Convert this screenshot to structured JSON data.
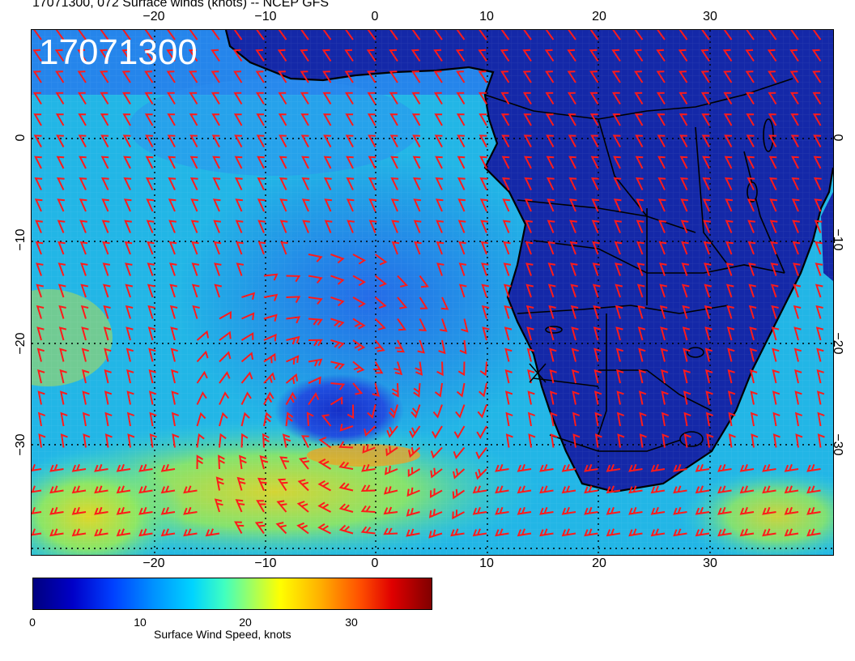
{
  "title": "17071300, 072 Surface winds (knots) -- NCEP GFS",
  "stamp": "17071300",
  "axes": {
    "top_ticks": [
      "−20",
      "−10",
      "0",
      "10",
      "20",
      "30"
    ],
    "bottom_ticks": [
      "−20",
      "−10",
      "0",
      "10",
      "20",
      "30"
    ],
    "left_ticks": [
      "0",
      "−10",
      "−20",
      "−30"
    ],
    "right_ticks": [
      "0",
      "−10",
      "−20",
      "−30"
    ]
  },
  "colorbar": {
    "ticks": [
      "0",
      "10",
      "20",
      "30"
    ],
    "label": "Surface Wind Speed, knots",
    "range": [
      0,
      37
    ]
  },
  "colors": {
    "barb": "#ff1a1a",
    "land": "#1428a8",
    "ocean_calm": "#2a6cf0",
    "ocean_mid": "#18c8e8",
    "ocean_strong": "#d8e020",
    "coast": "#000000"
  }
}
